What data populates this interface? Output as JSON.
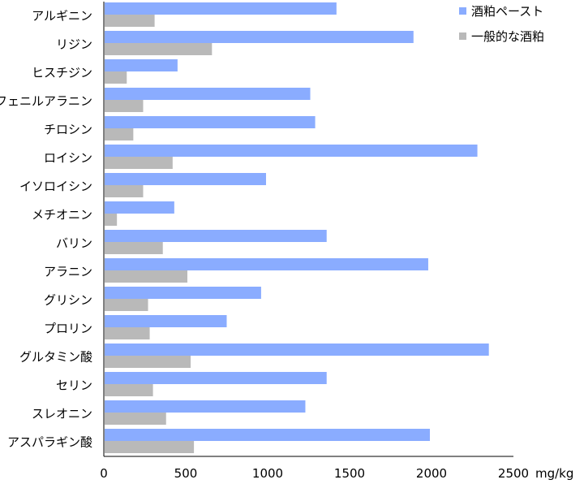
{
  "chart_data": {
    "type": "bar",
    "orientation": "horizontal",
    "categories": [
      "アルギニン",
      "リジン",
      "ヒスチジン",
      "フェニルアラニン",
      "チロシン",
      "ロイシン",
      "イソロイシン",
      "メチオニン",
      "バリン",
      "アラニン",
      "グリシン",
      "プロリン",
      "グルタミン酸",
      "セリン",
      "スレオニン",
      "アスパラギン酸"
    ],
    "series": [
      {
        "name": "酒粕ペースト",
        "color": "#8aacff",
        "values": [
          1420,
          1890,
          450,
          1260,
          1290,
          2280,
          990,
          430,
          1360,
          1980,
          960,
          750,
          2350,
          1360,
          1230,
          1990
        ]
      },
      {
        "name": "一般的な酒粕",
        "color": "#b9b9b9",
        "values": [
          310,
          660,
          140,
          240,
          180,
          420,
          240,
          80,
          360,
          510,
          270,
          280,
          530,
          300,
          380,
          550
        ]
      }
    ],
    "xlim": [
      0,
      2500
    ],
    "xticks": [
      0,
      500,
      1000,
      1500,
      2000,
      2500
    ],
    "xunit": "mg/kg",
    "legend_position": "top-right",
    "grid": false
  }
}
